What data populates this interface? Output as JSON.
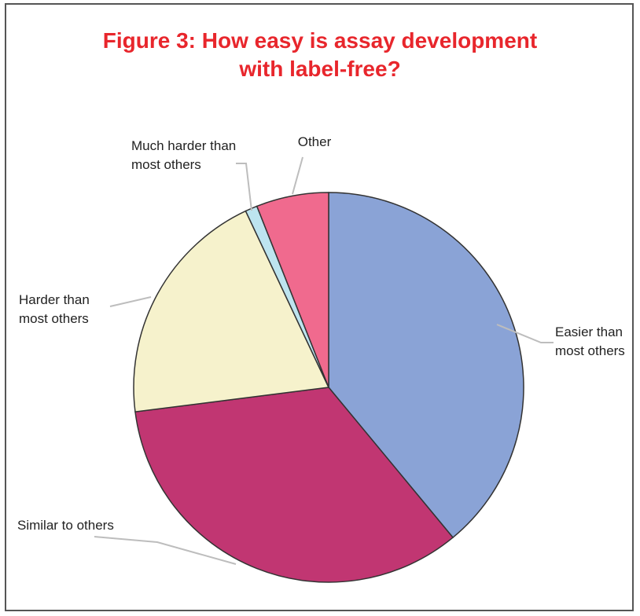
{
  "chart_data": {
    "type": "pie",
    "title_lines": [
      "Figure 3: How easy is assay development",
      "with label-free?"
    ],
    "slices": [
      {
        "label_lines": [
          "Easier than",
          "most others"
        ],
        "value": 39,
        "color": "#8aa3d6"
      },
      {
        "label_lines": [
          "Similar to others"
        ],
        "value": 34,
        "color": "#c13672"
      },
      {
        "label_lines": [
          "Harder than",
          "most others"
        ],
        "value": 20,
        "color": "#f6f2cc"
      },
      {
        "label_lines": [
          "Much harder than",
          "most others"
        ],
        "value": 1,
        "color": "#bde4ef"
      },
      {
        "label_lines": [
          "Other"
        ],
        "value": 6,
        "color": "#f06a8e"
      }
    ]
  }
}
